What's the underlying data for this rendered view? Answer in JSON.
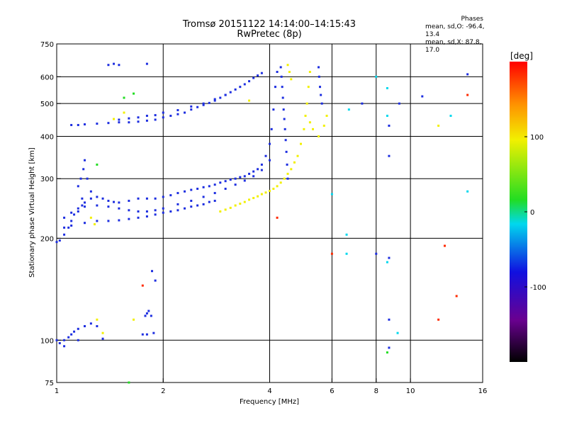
{
  "header": {
    "title": "Tromsø 20151122 14:14:00–14:15:43",
    "subtitle": "RwPretec (8p)"
  },
  "phases_box": {
    "heading": "Phases",
    "line_o": "mean, sd,O: -96.4, 13.4",
    "line_x": "mean, sd,X:  87.8, 17.0"
  },
  "colorbar": {
    "unit": "[deg]",
    "tick_labels": [
      "100",
      "0",
      "-100"
    ],
    "range": [
      -200,
      200
    ]
  },
  "chart_data": {
    "type": "scatter",
    "xlabel": "Frequency [MHz]",
    "ylabel": "Stationary phase Virtual Height [km]",
    "x_scale": "log",
    "y_scale": "log",
    "xlim": [
      1,
      16
    ],
    "ylim": [
      75,
      750
    ],
    "x_tick_labels": [
      "1",
      "2",
      "4",
      "6",
      "8",
      "10",
      "16"
    ],
    "y_tick_labels": [
      "75",
      "100",
      "200",
      "300",
      "400",
      "500",
      "600",
      "750"
    ],
    "x_grid": [
      2,
      4,
      6,
      8,
      10
    ],
    "y_grid": [
      100,
      200,
      300,
      400,
      500,
      600
    ],
    "series": [
      {
        "color": "#1d2ee0",
        "points": [
          [
            1.0,
            195
          ],
          [
            1.02,
            197
          ],
          [
            1.05,
            205
          ],
          [
            1.08,
            215
          ],
          [
            1.1,
            225
          ],
          [
            1.12,
            235
          ],
          [
            1.15,
            240
          ],
          [
            1.18,
            250
          ],
          [
            1.2,
            255
          ],
          [
            1.25,
            262
          ],
          [
            1.3,
            265
          ],
          [
            1.35,
            262
          ],
          [
            1.4,
            258
          ],
          [
            1.45,
            256
          ],
          [
            1.5,
            255
          ],
          [
            1.6,
            258
          ],
          [
            1.7,
            262
          ],
          [
            1.8,
            262
          ],
          [
            1.9,
            262
          ],
          [
            2.0,
            265
          ],
          [
            2.1,
            268
          ],
          [
            2.2,
            272
          ],
          [
            2.3,
            275
          ],
          [
            2.4,
            278
          ],
          [
            2.5,
            280
          ],
          [
            2.6,
            283
          ],
          [
            2.7,
            285
          ],
          [
            2.8,
            288
          ],
          [
            2.9,
            292
          ],
          [
            3.0,
            295
          ],
          [
            3.1,
            298
          ],
          [
            3.2,
            300
          ],
          [
            3.3,
            303
          ],
          [
            3.4,
            305
          ],
          [
            3.5,
            310
          ],
          [
            3.6,
            315
          ],
          [
            3.7,
            320
          ],
          [
            3.8,
            330
          ],
          [
            3.9,
            350
          ],
          [
            4.0,
            380
          ],
          [
            4.05,
            420
          ],
          [
            4.1,
            480
          ],
          [
            4.15,
            560
          ],
          [
            4.2,
            620
          ],
          [
            1.05,
            230
          ],
          [
            1.1,
            238
          ],
          [
            1.15,
            245
          ],
          [
            1.2,
            248
          ],
          [
            1.3,
            250
          ],
          [
            1.4,
            248
          ],
          [
            1.5,
            245
          ],
          [
            1.6,
            242
          ],
          [
            1.7,
            240
          ],
          [
            1.8,
            240
          ],
          [
            1.9,
            242
          ],
          [
            2.0,
            245
          ],
          [
            2.2,
            252
          ],
          [
            2.4,
            258
          ],
          [
            2.6,
            265
          ],
          [
            2.8,
            272
          ],
          [
            3.0,
            280
          ],
          [
            3.2,
            288
          ],
          [
            3.4,
            296
          ],
          [
            3.6,
            305
          ],
          [
            3.8,
            318
          ],
          [
            4.0,
            340
          ],
          [
            1.05,
            215
          ],
          [
            1.1,
            218
          ],
          [
            1.2,
            222
          ],
          [
            1.3,
            225
          ],
          [
            1.4,
            225
          ],
          [
            1.5,
            226
          ],
          [
            1.6,
            228
          ],
          [
            1.7,
            230
          ],
          [
            1.8,
            232
          ],
          [
            1.9,
            235
          ],
          [
            2.0,
            238
          ],
          [
            2.1,
            240
          ],
          [
            2.2,
            242
          ],
          [
            2.3,
            245
          ],
          [
            2.4,
            248
          ],
          [
            2.5,
            250
          ],
          [
            2.6,
            252
          ],
          [
            2.7,
            256
          ],
          [
            2.8,
            258
          ],
          [
            1.15,
            285
          ],
          [
            1.17,
            300
          ],
          [
            1.19,
            320
          ],
          [
            1.2,
            340
          ],
          [
            1.22,
            300
          ],
          [
            1.25,
            275
          ],
          [
            1.18,
            262
          ],
          [
            1.1,
            432
          ],
          [
            1.15,
            432
          ],
          [
            1.2,
            434
          ],
          [
            1.3,
            436
          ],
          [
            1.4,
            438
          ],
          [
            1.5,
            440
          ],
          [
            1.6,
            440
          ],
          [
            1.7,
            442
          ],
          [
            1.8,
            445
          ],
          [
            1.9,
            448
          ],
          [
            2.0,
            455
          ],
          [
            2.1,
            460
          ],
          [
            2.2,
            465
          ],
          [
            2.3,
            470
          ],
          [
            2.4,
            480
          ],
          [
            2.5,
            488
          ],
          [
            2.6,
            495
          ],
          [
            2.7,
            502
          ],
          [
            2.8,
            510
          ],
          [
            2.9,
            520
          ],
          [
            3.0,
            530
          ],
          [
            3.1,
            540
          ],
          [
            3.2,
            550
          ],
          [
            3.3,
            560
          ],
          [
            3.4,
            570
          ],
          [
            3.5,
            582
          ],
          [
            3.6,
            595
          ],
          [
            3.7,
            605
          ],
          [
            3.8,
            615
          ],
          [
            1.5,
            448
          ],
          [
            1.6,
            452
          ],
          [
            1.7,
            455
          ],
          [
            1.8,
            460
          ],
          [
            1.9,
            462
          ],
          [
            2.0,
            470
          ],
          [
            2.2,
            478
          ],
          [
            2.4,
            490
          ],
          [
            2.6,
            500
          ],
          [
            2.8,
            515
          ],
          [
            3.0,
            530
          ],
          [
            4.3,
            640
          ],
          [
            4.32,
            600
          ],
          [
            4.34,
            560
          ],
          [
            4.36,
            520
          ],
          [
            4.38,
            480
          ],
          [
            4.4,
            450
          ],
          [
            4.42,
            420
          ],
          [
            4.44,
            390
          ],
          [
            4.46,
            360
          ],
          [
            4.48,
            330
          ],
          [
            4.5,
            300
          ],
          [
            5.5,
            640
          ],
          [
            5.52,
            600
          ],
          [
            5.55,
            560
          ],
          [
            5.58,
            530
          ],
          [
            5.62,
            500
          ],
          [
            1.0,
            100
          ],
          [
            1.02,
            98
          ],
          [
            1.05,
            100
          ],
          [
            1.08,
            102
          ],
          [
            1.1,
            104
          ],
          [
            1.12,
            106
          ],
          [
            1.15,
            108
          ],
          [
            1.2,
            110
          ],
          [
            1.25,
            112
          ],
          [
            1.05,
            96
          ],
          [
            1.15,
            100
          ],
          [
            1.3,
            110
          ],
          [
            1.35,
            101
          ],
          [
            1.4,
            650
          ],
          [
            1.45,
            655
          ],
          [
            1.5,
            650
          ],
          [
            1.8,
            655
          ],
          [
            1.78,
            118
          ],
          [
            1.8,
            120
          ],
          [
            1.82,
            122
          ],
          [
            1.85,
            118
          ],
          [
            1.75,
            104
          ],
          [
            1.8,
            104
          ],
          [
            1.88,
            105
          ],
          [
            1.86,
            160
          ],
          [
            1.9,
            150
          ],
          [
            8.0,
            180
          ],
          [
            8.7,
            430
          ],
          [
            8.7,
            350
          ],
          [
            8.7,
            175
          ],
          [
            8.7,
            115
          ],
          [
            8.7,
            95
          ],
          [
            9.3,
            500
          ],
          [
            7.3,
            500
          ],
          [
            10.8,
            525
          ],
          [
            14.5,
            610
          ]
        ]
      },
      {
        "color": "#f2f000",
        "points": [
          [
            2.9,
            240
          ],
          [
            3.0,
            243
          ],
          [
            3.1,
            246
          ],
          [
            3.2,
            250
          ],
          [
            3.3,
            253
          ],
          [
            3.4,
            256
          ],
          [
            3.5,
            260
          ],
          [
            3.6,
            263
          ],
          [
            3.7,
            266
          ],
          [
            3.8,
            270
          ],
          [
            3.9,
            273
          ],
          [
            4.0,
            276
          ],
          [
            4.1,
            280
          ],
          [
            4.2,
            285
          ],
          [
            4.3,
            292
          ],
          [
            4.4,
            300
          ],
          [
            4.5,
            310
          ],
          [
            4.6,
            320
          ],
          [
            4.7,
            335
          ],
          [
            4.8,
            350
          ],
          [
            4.9,
            380
          ],
          [
            5.0,
            420
          ],
          [
            5.05,
            460
          ],
          [
            5.1,
            500
          ],
          [
            5.15,
            560
          ],
          [
            5.2,
            620
          ],
          [
            4.5,
            650
          ],
          [
            4.55,
            620
          ],
          [
            4.6,
            590
          ],
          [
            5.2,
            440
          ],
          [
            5.3,
            420
          ],
          [
            5.5,
            400
          ],
          [
            5.7,
            430
          ],
          [
            5.8,
            460
          ],
          [
            1.3,
            115
          ],
          [
            1.35,
            105
          ],
          [
            1.25,
            230
          ],
          [
            1.28,
            220
          ],
          [
            1.45,
            450
          ],
          [
            1.55,
            470
          ],
          [
            1.65,
            115
          ],
          [
            12.0,
            430
          ],
          [
            3.5,
            510
          ]
        ]
      },
      {
        "color": "#ff2a00",
        "points": [
          [
            1.75,
            145
          ],
          [
            12.5,
            190
          ],
          [
            13.5,
            135
          ],
          [
            14.5,
            530
          ],
          [
            6.0,
            180
          ],
          [
            12.0,
            115
          ],
          [
            4.2,
            230
          ]
        ]
      },
      {
        "color": "#00d8ee",
        "points": [
          [
            6.0,
            270
          ],
          [
            6.6,
            205
          ],
          [
            6.7,
            480
          ],
          [
            8.0,
            600
          ],
          [
            8.6,
            555
          ],
          [
            8.6,
            460
          ],
          [
            8.6,
            170
          ],
          [
            14.5,
            275
          ],
          [
            13.0,
            460
          ],
          [
            6.6,
            180
          ],
          [
            9.2,
            105
          ]
        ]
      },
      {
        "color": "#22dd22",
        "points": [
          [
            1.3,
            330
          ],
          [
            1.55,
            520
          ],
          [
            1.65,
            535
          ],
          [
            1.6,
            75
          ],
          [
            8.6,
            92
          ]
        ]
      }
    ]
  }
}
